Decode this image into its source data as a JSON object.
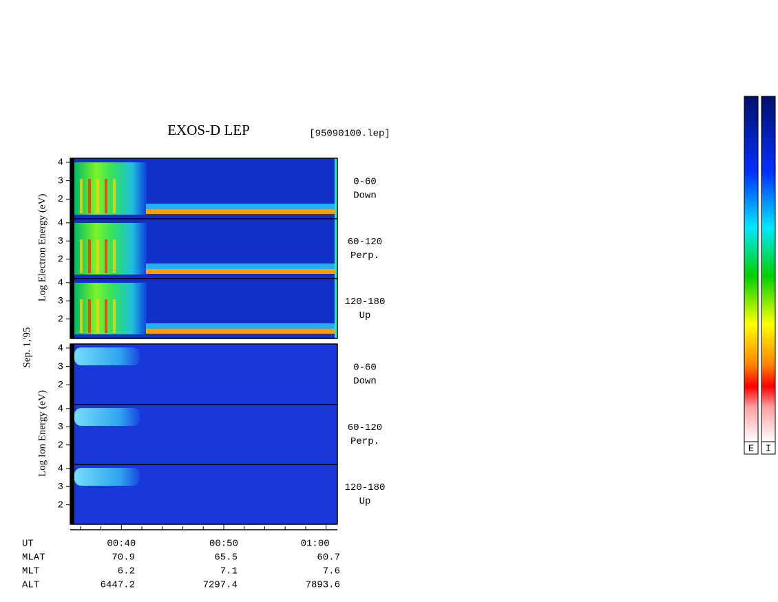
{
  "chart_data": {
    "type": "spectrogram",
    "title": "EXOS-D LEP",
    "file": "[95090100.lep]",
    "date": "Sep. 1,'95",
    "groups": [
      {
        "label": "Log Electron Energy (eV)"
      },
      {
        "label": "Log Ion Energy (eV)"
      }
    ],
    "panels": [
      {
        "group": 0,
        "angle": "0-60",
        "direction": "Down"
      },
      {
        "group": 0,
        "angle": "60-120",
        "direction": "Perp."
      },
      {
        "group": 0,
        "angle": "120-180",
        "direction": "Up"
      },
      {
        "group": 1,
        "angle": "0-60",
        "direction": "Down"
      },
      {
        "group": 1,
        "angle": "60-120",
        "direction": "Perp."
      },
      {
        "group": 1,
        "angle": "120-180",
        "direction": "Up"
      }
    ],
    "ylim": [
      0.93,
      4.22
    ],
    "yticks": [
      2,
      3,
      4
    ],
    "xlim": [
      35,
      61.1
    ],
    "xticks": [
      {
        "value": 40,
        "label": "00:40"
      },
      {
        "value": 50,
        "label": "00:50"
      },
      {
        "value": 60,
        "label": "01:00"
      }
    ],
    "xminor_ticks": [
      36,
      38,
      42,
      44,
      46,
      48,
      52,
      54,
      56,
      58
    ],
    "x_label": "UT",
    "ephemeris": [
      {
        "name": "MLAT",
        "values": [
          70.9,
          65.5,
          60.7
        ]
      },
      {
        "name": "MLT",
        "values": [
          6.2,
          7.1,
          7.6
        ]
      },
      {
        "name": "ALT",
        "values": [
          6447.2,
          7297.4,
          7893.6
        ]
      }
    ],
    "colorbars": [
      "E",
      "I"
    ]
  }
}
